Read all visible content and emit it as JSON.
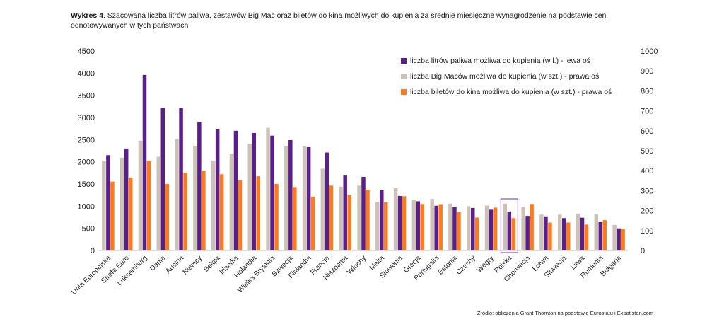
{
  "caption": {
    "lead": "Wykres 4",
    "text": ". Szacowana liczba litrów paliwa, zestawów Big Mac oraz biletów do kina możliwych do kupienia za średnie miesięczne wynagrodzenie na podstawie cen odnotowywanych w tych państwach"
  },
  "source": "Źródło: obliczenia Grant Thornton na podstawie Eurostatu i Expatistan.com",
  "colors": {
    "fuel": "#5b1f8c",
    "bigmac": "#cdc2b6",
    "cinema": "#ff7a1a",
    "highlight": "#6b2fa3"
  },
  "chart_data": {
    "type": "bar",
    "highlighted_category": "Polska",
    "left_axis": {
      "min": 0,
      "max": 4500,
      "ticks": [
        0,
        500,
        1000,
        1500,
        2000,
        2500,
        3000,
        3500,
        4000,
        4500
      ]
    },
    "right_axis": {
      "min": 0,
      "max": 1000,
      "ticks": [
        0,
        100,
        200,
        300,
        400,
        500,
        600,
        700,
        800,
        900,
        1000
      ]
    },
    "legend": {
      "placement": "top-right"
    },
    "categories": [
      "Unia Europejska",
      "Strefa Euro",
      "Luksemburg",
      "Dania",
      "Austria",
      "Niemcy",
      "Belgia",
      "Irlandia",
      "Holandia",
      "Wielka Brytania",
      "Szwecja",
      "Finlandia",
      "Francja",
      "Hiszpania",
      "Włochy",
      "Malta",
      "Słowenia",
      "Grecja",
      "Portugalia",
      "Estonia",
      "Czechy",
      "Węgry",
      "Polska",
      "Chorwacja",
      "Łotwa",
      "Słowacja",
      "Litwa",
      "Rumunia",
      "Bułgaria"
    ],
    "series": [
      {
        "name": "liczba Big Maców możliwa do kupienia (w szt.) - prawa oś",
        "axis": "right",
        "values": [
          450,
          465,
          550,
          470,
          560,
          525,
          450,
          485,
          535,
          615,
          525,
          522,
          410,
          320,
          325,
          242,
          312,
          252,
          258,
          235,
          222,
          225,
          235,
          218,
          180,
          180,
          185,
          182,
          128
        ]
      },
      {
        "name": "liczba litrów paliwa możliwa do kupienia (w l.) - lewa oś",
        "axis": "left",
        "values": [
          2150,
          2300,
          3960,
          3220,
          3210,
          2900,
          2730,
          2700,
          2650,
          2590,
          2490,
          2330,
          2210,
          1690,
          1660,
          1360,
          1230,
          1110,
          1010,
          980,
          960,
          920,
          880,
          780,
          770,
          730,
          740,
          640,
          500
        ]
      },
      {
        "name": "liczba biletów do kina możliwa do kupienia (w szt.) - prawa oś",
        "axis": "right",
        "values": [
          345,
          365,
          448,
          333,
          390,
          400,
          382,
          352,
          372,
          333,
          318,
          270,
          325,
          278,
          305,
          242,
          272,
          233,
          232,
          192,
          165,
          215,
          162,
          233,
          140,
          140,
          130,
          152,
          107
        ]
      }
    ]
  }
}
